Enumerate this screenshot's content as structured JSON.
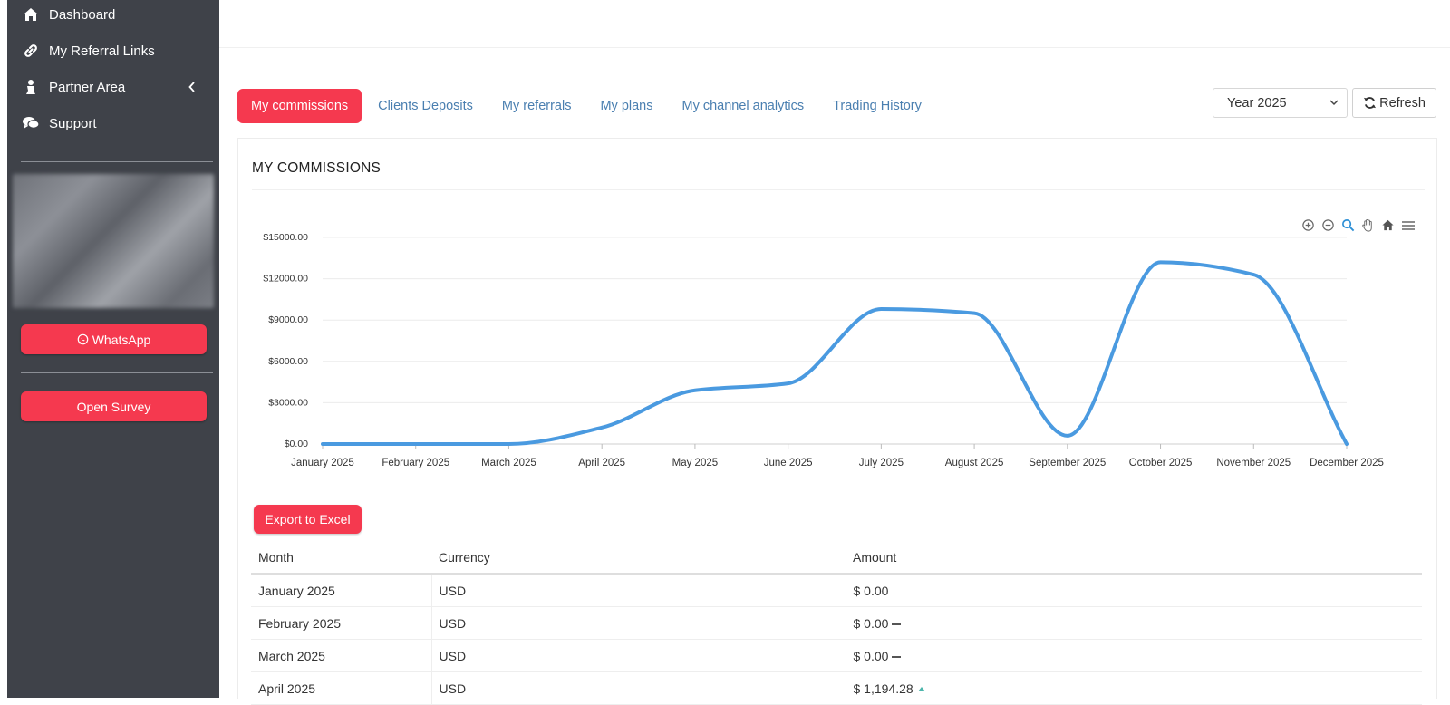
{
  "sidebar": {
    "items": [
      {
        "label": "Dashboard",
        "icon": "home-icon"
      },
      {
        "label": "My Referral Links",
        "icon": "link-icon"
      },
      {
        "label": "Partner Area",
        "icon": "user-icon"
      },
      {
        "label": "Support",
        "icon": "chat-icon"
      }
    ],
    "whatsapp_label": "WhatsApp",
    "survey_label": "Open Survey"
  },
  "tabs": [
    {
      "label": "My commissions",
      "active": true
    },
    {
      "label": "Clients Deposits",
      "active": false
    },
    {
      "label": "My referrals",
      "active": false
    },
    {
      "label": "My plans",
      "active": false
    },
    {
      "label": "My channel analytics",
      "active": false
    },
    {
      "label": "Trading History",
      "active": false
    }
  ],
  "filters": {
    "year_selected": "Year 2025",
    "refresh_label": "Refresh"
  },
  "panel": {
    "title": "MY COMMISSIONS",
    "export_label": "Export to Excel"
  },
  "chart_data": {
    "type": "line",
    "smooth": true,
    "categories": [
      "January 2025",
      "February 2025",
      "March 2025",
      "April 2025",
      "May 2025",
      "June 2025",
      "July 2025",
      "August 2025",
      "September 2025",
      "October 2025",
      "November 2025",
      "December 2025"
    ],
    "series": [
      {
        "values": [
          0,
          0,
          0,
          1194.28,
          3900,
          4400,
          9800,
          9500,
          600,
          13200,
          12300,
          0
        ]
      }
    ],
    "y_ticks": [
      "$0.00",
      "$3000.00",
      "$6000.00",
      "$9000.00",
      "$12000.00",
      "$15000.00"
    ],
    "ylim": [
      0,
      15000
    ],
    "grid": true,
    "color": "#4a9ae0"
  },
  "table": {
    "headers": [
      "Month",
      "Currency",
      "Amount"
    ],
    "rows": [
      {
        "month": "January 2025",
        "currency": "USD",
        "amount": "$ 0.00",
        "trend": "none"
      },
      {
        "month": "February 2025",
        "currency": "USD",
        "amount": "$ 0.00",
        "trend": "flat"
      },
      {
        "month": "March 2025",
        "currency": "USD",
        "amount": "$ 0.00",
        "trend": "flat"
      },
      {
        "month": "April 2025",
        "currency": "USD",
        "amount": "$ 1,194.28",
        "trend": "up"
      }
    ]
  },
  "colors": {
    "sidebar_bg": "#3f4249",
    "accent": "#f5394f",
    "tab_link": "#4a7fb0"
  }
}
